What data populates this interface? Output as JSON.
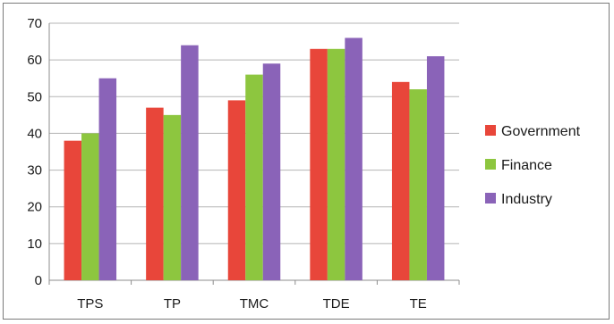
{
  "chart_data": {
    "type": "bar",
    "categories": [
      "TPS",
      "TP",
      "TMC",
      "TDE",
      "TE"
    ],
    "series": [
      {
        "name": "Government",
        "values": [
          38,
          47,
          49,
          63,
          54
        ],
        "color": "#e8463a"
      },
      {
        "name": "Finance",
        "values": [
          40,
          45,
          56,
          63,
          52
        ],
        "color": "#8dc63f"
      },
      {
        "name": "Industry",
        "values": [
          55,
          64,
          59,
          66,
          61
        ],
        "color": "#8a63b8"
      }
    ],
    "yticks": [
      0,
      10,
      20,
      30,
      40,
      50,
      60,
      70
    ],
    "ylim": [
      0,
      70
    ],
    "grid": true,
    "legend": "right"
  }
}
